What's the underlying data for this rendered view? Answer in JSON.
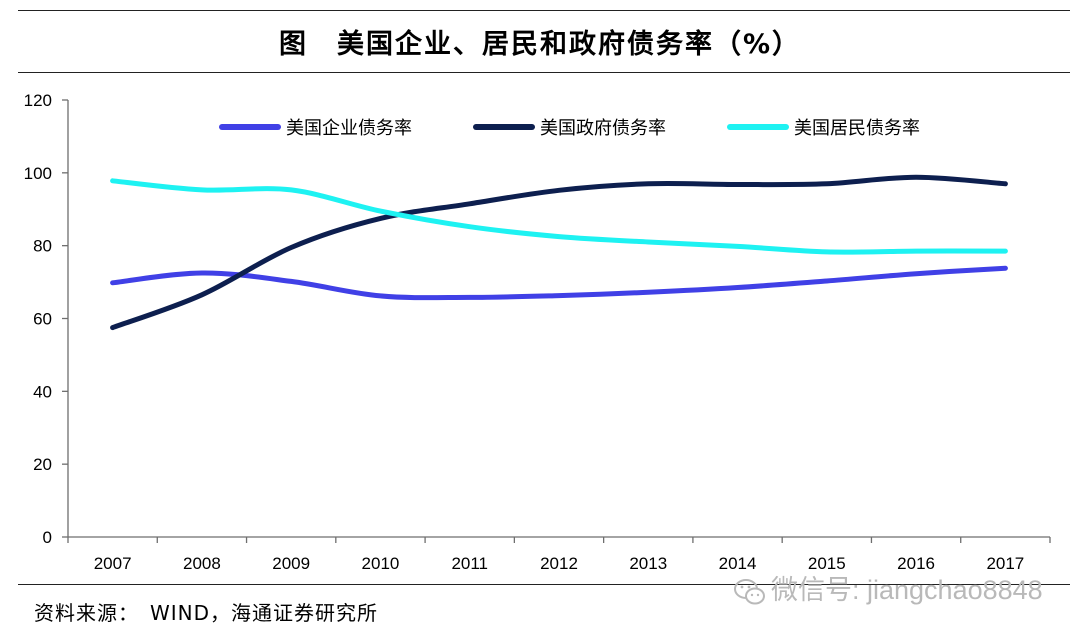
{
  "figure": {
    "title": "图　美国企业、居民和政府债务率（%）",
    "source": "资料来源：　WIND，海通证券研究所",
    "watermark": "微信号: jiangchao8848",
    "watermark_icon": "wechat-icon"
  },
  "chart_data": {
    "type": "line",
    "title": "",
    "xlabel": "",
    "ylabel": "",
    "ylim": [
      0,
      120
    ],
    "yticks": [
      0,
      20,
      40,
      60,
      80,
      100,
      120
    ],
    "categories": [
      "2007",
      "2008",
      "2009",
      "2010",
      "2011",
      "2012",
      "2013",
      "2014",
      "2015",
      "2016",
      "2017"
    ],
    "grid": false,
    "legend_position": "top",
    "series": [
      {
        "name": "美国企业债务率",
        "color": "#4040e6",
        "values": [
          69.8,
          72.5,
          70.2,
          66.2,
          65.8,
          66.3,
          67.2,
          68.5,
          70.3,
          72.3,
          73.8
        ]
      },
      {
        "name": "美国政府债务率",
        "color": "#0d1f4f",
        "values": [
          57.5,
          66.5,
          79.5,
          87.5,
          91.5,
          95.2,
          97.0,
          96.8,
          97.0,
          98.8,
          97.0
        ]
      },
      {
        "name": "美国居民债务率",
        "color": "#1ef2f2",
        "values": [
          97.8,
          95.3,
          95.3,
          89.5,
          85.2,
          82.5,
          81.0,
          79.8,
          78.3,
          78.5,
          78.5
        ]
      }
    ]
  }
}
